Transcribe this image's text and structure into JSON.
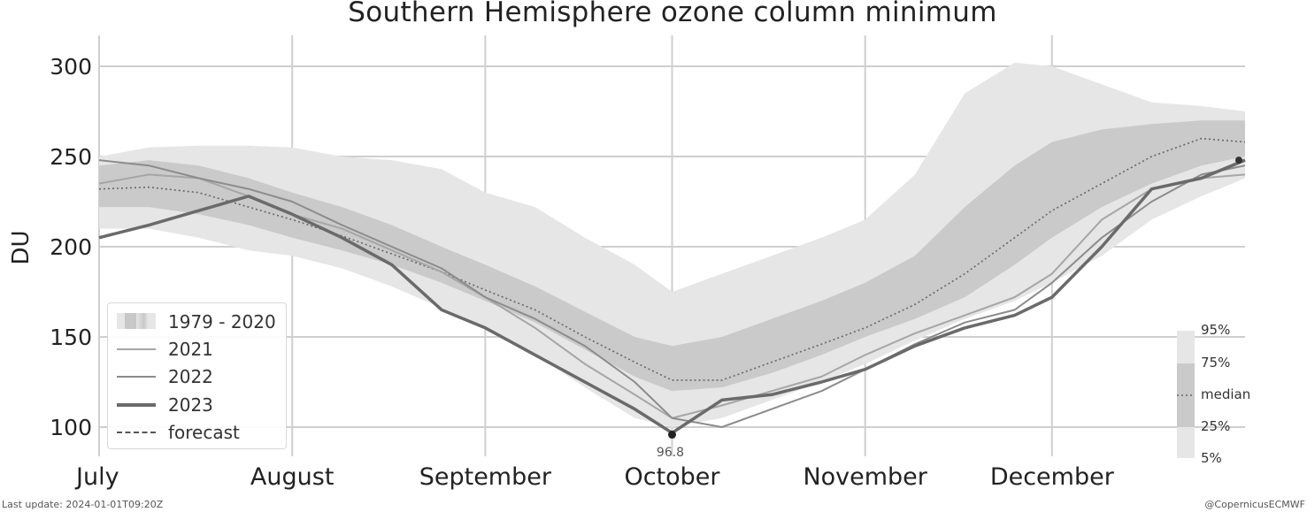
{
  "chart_data": {
    "type": "area",
    "title": "Southern Hemisphere ozone column minimum",
    "xlabel": "",
    "ylabel": "DU",
    "x_ticks": [
      "July",
      "August",
      "September",
      "October",
      "November",
      "December"
    ],
    "y_ticks": [
      100,
      150,
      200,
      250,
      300
    ],
    "ylim": [
      88,
      318
    ],
    "x_domain_days": [
      0,
      184
    ],
    "grid": true,
    "legend": {
      "placement": "bottom-left",
      "entries": [
        "1979 - 2020",
        "2021",
        "2022",
        "2023",
        "forecast"
      ]
    },
    "percentile_key": [
      "95%",
      "75%",
      "median",
      "25%",
      "5%"
    ],
    "minimum_annotation": {
      "label": "96.8",
      "day": 92,
      "value": 96.8
    },
    "x_day_index": [
      0,
      8,
      16,
      24,
      31,
      39,
      47,
      55,
      62,
      70,
      78,
      86,
      92,
      100,
      108,
      116,
      123,
      131,
      139,
      147,
      153,
      161,
      169,
      177,
      184
    ],
    "bands": {
      "p05": [
        210,
        210,
        205,
        198,
        195,
        188,
        178,
        166,
        155,
        140,
        122,
        105,
        100,
        105,
        115,
        125,
        135,
        148,
        160,
        170,
        180,
        195,
        215,
        228,
        238
      ],
      "p25": [
        222,
        222,
        218,
        212,
        205,
        198,
        190,
        180,
        170,
        158,
        143,
        128,
        120,
        122,
        130,
        140,
        150,
        160,
        172,
        190,
        205,
        222,
        235,
        245,
        250
      ],
      "median": [
        232,
        233,
        230,
        222,
        215,
        206,
        196,
        186,
        176,
        165,
        150,
        136,
        126,
        126,
        136,
        146,
        155,
        168,
        185,
        205,
        220,
        235,
        250,
        260,
        258
      ],
      "p75": [
        245,
        248,
        245,
        238,
        230,
        222,
        212,
        200,
        190,
        178,
        164,
        150,
        145,
        150,
        160,
        170,
        180,
        195,
        222,
        245,
        258,
        265,
        268,
        270,
        270
      ],
      "p95": [
        250,
        255,
        256,
        256,
        255,
        250,
        248,
        243,
        230,
        222,
        205,
        190,
        175,
        185,
        195,
        205,
        215,
        240,
        285,
        302,
        300,
        290,
        280,
        278,
        275
      ]
    },
    "series": [
      {
        "name": "2021",
        "values": [
          235,
          240,
          238,
          228,
          218,
          210,
          198,
          186,
          172,
          155,
          135,
          118,
          105,
          112,
          120,
          128,
          140,
          152,
          162,
          172,
          185,
          215,
          232,
          238,
          240
        ]
      },
      {
        "name": "2022",
        "values": [
          248,
          245,
          238,
          232,
          225,
          212,
          200,
          188,
          172,
          160,
          145,
          125,
          105,
          100,
          110,
          120,
          132,
          146,
          158,
          165,
          180,
          205,
          225,
          240,
          245
        ]
      },
      {
        "name": "2023",
        "values": [
          205,
          212,
          220,
          228,
          218,
          205,
          190,
          165,
          155,
          140,
          125,
          110,
          96.8,
          115,
          118,
          125,
          132,
          145,
          155,
          162,
          172,
          200,
          232,
          238,
          248
        ]
      }
    ],
    "forecast": [
      {
        "day": 183,
        "value": 248
      }
    ]
  },
  "footer": {
    "last_update": "Last update: 2024-01-01T09:20Z",
    "credit": "@CopernicusECMWF"
  }
}
